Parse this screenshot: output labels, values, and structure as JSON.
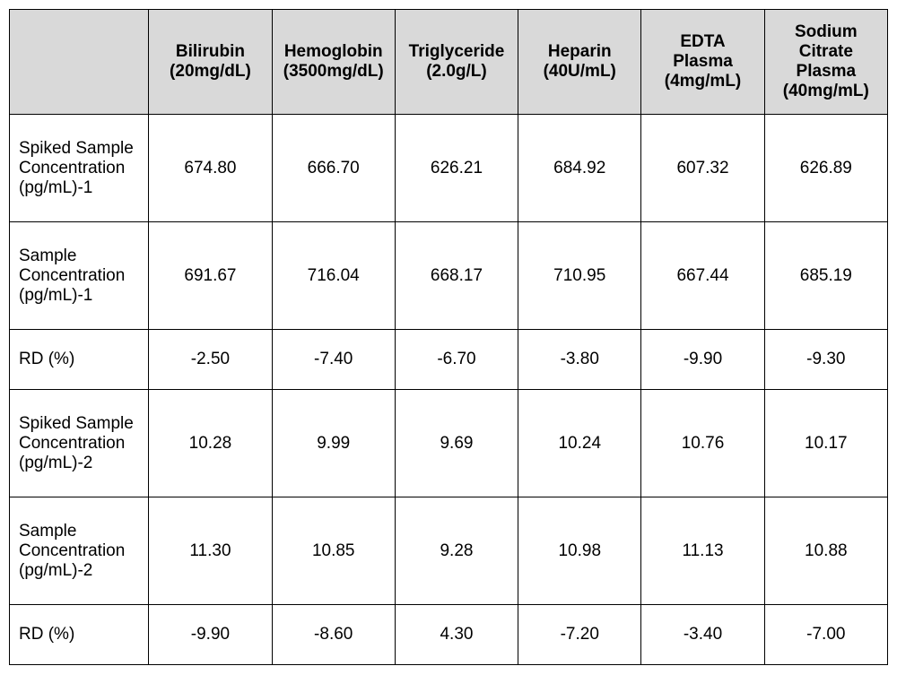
{
  "table": {
    "background_color": "#ffffff",
    "header_bg": "#d9d9d9",
    "border_color": "#000000",
    "font_family": "Arial, Helvetica, sans-serif",
    "header_fontsize": 19,
    "cell_fontsize": 19,
    "columns": [
      "",
      "Bilirubin (20mg/dL)",
      "Hemoglobin (3500mg/dL)",
      "Triglyceride (2.0g/L)",
      "Heparin (40U/mL)",
      "EDTA Plasma (4mg/mL)",
      "Sodium Citrate Plasma (40mg/mL)"
    ],
    "rows": [
      {
        "label": "Spiked Sample Concentration (pg/mL)-1",
        "height_class": "tall-row",
        "values": [
          "674.80",
          "666.70",
          "626.21",
          "684.92",
          "607.32",
          "626.89"
        ]
      },
      {
        "label": "Sample Concentration (pg/mL)-1",
        "height_class": "tall-row",
        "values": [
          "691.67",
          "716.04",
          "668.17",
          "710.95",
          "667.44",
          "685.19"
        ]
      },
      {
        "label": "RD (%)",
        "height_class": "short-row",
        "values": [
          "-2.50",
          "-7.40",
          "-6.70",
          "-3.80",
          "-9.90",
          "-9.30"
        ]
      },
      {
        "label": "Spiked Sample Concentration (pg/mL)-2",
        "height_class": "tall-row",
        "values": [
          "10.28",
          "9.99",
          "9.69",
          "10.24",
          "10.76",
          "10.17"
        ]
      },
      {
        "label": "Sample Concentration (pg/mL)-2",
        "height_class": "tall-row",
        "values": [
          "11.30",
          "10.85",
          "9.28",
          "10.98",
          "11.13",
          "10.88"
        ]
      },
      {
        "label": "RD (%)",
        "height_class": "short-row",
        "values": [
          "-9.90",
          "-8.60",
          "4.30",
          "-7.20",
          "-3.40",
          "-7.00"
        ]
      }
    ]
  }
}
